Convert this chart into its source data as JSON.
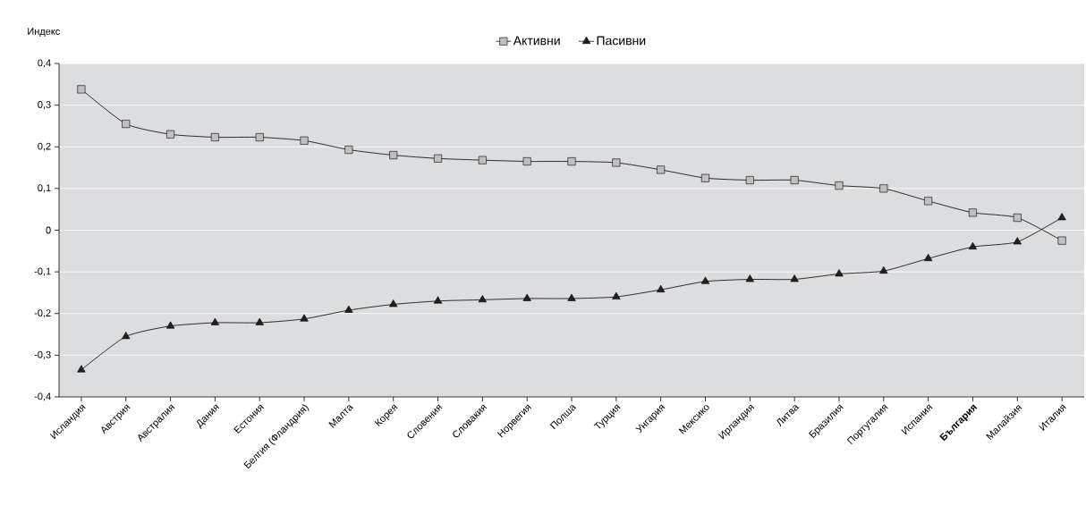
{
  "chart_data": {
    "type": "line",
    "ylabel": "Индекс",
    "categories": [
      "Исландия",
      "Австрия",
      "Австралия",
      "Дания",
      "Естония",
      "Белгия (Фландрия)",
      "Малта",
      "Корея",
      "Словения",
      "Словакия",
      "Норвегия",
      "Полша",
      "Турция",
      "Унгария",
      "Мексико",
      "Ирландия",
      "Литва",
      "Бразилия",
      "Португалия",
      "Испания",
      "**България**",
      "Малайзия",
      "Италия"
    ],
    "series": [
      {
        "name": "Активни",
        "color": "#c0c0c2",
        "marker": "square",
        "values": [
          0.338,
          0.255,
          0.23,
          0.223,
          0.223,
          0.215,
          0.193,
          0.18,
          0.172,
          0.168,
          0.165,
          0.165,
          0.162,
          0.145,
          0.125,
          0.12,
          0.12,
          0.107,
          0.1,
          0.07,
          0.042,
          0.03,
          -0.025
        ]
      },
      {
        "name": "Пасивни",
        "color": "#231f20",
        "marker": "triangle",
        "values": [
          -0.335,
          -0.255,
          -0.23,
          -0.222,
          -0.222,
          -0.213,
          -0.192,
          -0.178,
          -0.17,
          -0.167,
          -0.164,
          -0.164,
          -0.16,
          -0.143,
          -0.123,
          -0.118,
          -0.118,
          -0.105,
          -0.098,
          -0.068,
          -0.04,
          -0.028,
          0.03
        ]
      }
    ],
    "ylim": [
      -0.4,
      0.4
    ],
    "yticks": [
      {
        "value": -0.4,
        "label": "-0,4"
      },
      {
        "value": -0.3,
        "label": "-0,3"
      },
      {
        "value": -0.2,
        "label": "-0,2"
      },
      {
        "value": -0.1,
        "label": "-0,1"
      },
      0,
      {
        "value": 0.1,
        "label": "0,1"
      },
      {
        "value": 0.2,
        "label": "0,2"
      },
      {
        "value": 0.3,
        "label": "0,3"
      },
      {
        "value": 0.4,
        "label": "0,4"
      }
    ],
    "grid": "y",
    "legend": "top",
    "line_style": "solid"
  }
}
